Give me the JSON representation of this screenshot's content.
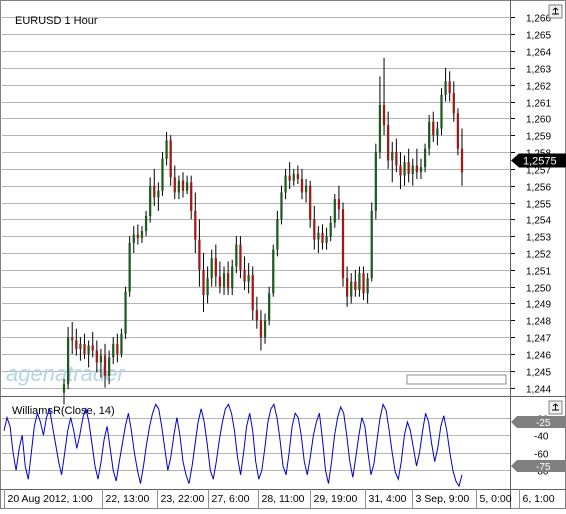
{
  "chart_data": [
    {
      "type": "candlestick",
      "title": "EURUSD 1 Hour",
      "ylim": [
        1.2435,
        1.2668
      ],
      "y_ticks": [
        "1,244",
        "1,245",
        "1,246",
        "1,247",
        "1,248",
        "1,249",
        "1,250",
        "1,251",
        "1,252",
        "1,253",
        "1,254",
        "1,255",
        "1,256",
        "1,257",
        "1,258",
        "1,259",
        "1,260",
        "1,261",
        "1,262",
        "1,263",
        "1,264",
        "1,265",
        "1,266"
      ],
      "last_price_label": "1,2575",
      "last_price": 1.2575,
      "x_ticks": [
        "20 Aug 2012, 1:00",
        "22, 13:00",
        "23, 22:00",
        "27, 6:00",
        "28, 11:00",
        "29, 19:00",
        "31, 4:00",
        "3 Sep, 9:00",
        "5, 0:00",
        "6, 1:00"
      ],
      "grid": true,
      "watermark": "agenatrader",
      "colors": {
        "up": "#1f5a1f",
        "down": "#a01818",
        "wick": "#000000",
        "price_marker": "#000000"
      },
      "candles": [
        {
          "o": 1.2437,
          "h": 1.2445,
          "l": 1.243,
          "c": 1.2442
        },
        {
          "o": 1.2442,
          "h": 1.2476,
          "l": 1.2439,
          "c": 1.247
        },
        {
          "o": 1.247,
          "h": 1.2479,
          "l": 1.246,
          "c": 1.2468
        },
        {
          "o": 1.2468,
          "h": 1.2475,
          "l": 1.2459,
          "c": 1.2463
        },
        {
          "o": 1.2463,
          "h": 1.247,
          "l": 1.2456,
          "c": 1.2466
        },
        {
          "o": 1.2466,
          "h": 1.2472,
          "l": 1.2457,
          "c": 1.246
        },
        {
          "o": 1.246,
          "h": 1.2468,
          "l": 1.2452,
          "c": 1.2465
        },
        {
          "o": 1.2465,
          "h": 1.2473,
          "l": 1.2458,
          "c": 1.2462
        },
        {
          "o": 1.2462,
          "h": 1.2468,
          "l": 1.2449,
          "c": 1.2455
        },
        {
          "o": 1.2455,
          "h": 1.2463,
          "l": 1.2446,
          "c": 1.2459
        },
        {
          "o": 1.2459,
          "h": 1.2466,
          "l": 1.244,
          "c": 1.2447
        },
        {
          "o": 1.2447,
          "h": 1.2462,
          "l": 1.2442,
          "c": 1.2458
        },
        {
          "o": 1.2458,
          "h": 1.247,
          "l": 1.2454,
          "c": 1.2466
        },
        {
          "o": 1.2466,
          "h": 1.2472,
          "l": 1.2455,
          "c": 1.246
        },
        {
          "o": 1.246,
          "h": 1.2475,
          "l": 1.2458,
          "c": 1.2472
        },
        {
          "o": 1.2472,
          "h": 1.25,
          "l": 1.2469,
          "c": 1.2497
        },
        {
          "o": 1.2497,
          "h": 1.253,
          "l": 1.2494,
          "c": 1.2526
        },
        {
          "o": 1.2526,
          "h": 1.2536,
          "l": 1.252,
          "c": 1.2531
        },
        {
          "o": 1.2531,
          "h": 1.2537,
          "l": 1.2525,
          "c": 1.2529
        },
        {
          "o": 1.2529,
          "h": 1.2536,
          "l": 1.2526,
          "c": 1.2533
        },
        {
          "o": 1.2533,
          "h": 1.2545,
          "l": 1.253,
          "c": 1.2542
        },
        {
          "o": 1.2542,
          "h": 1.2565,
          "l": 1.2538,
          "c": 1.256
        },
        {
          "o": 1.256,
          "h": 1.257,
          "l": 1.2548,
          "c": 1.2553
        },
        {
          "o": 1.2553,
          "h": 1.2562,
          "l": 1.2545,
          "c": 1.2557
        },
        {
          "o": 1.2557,
          "h": 1.258,
          "l": 1.2554,
          "c": 1.2576
        },
        {
          "o": 1.2576,
          "h": 1.2592,
          "l": 1.2572,
          "c": 1.2587
        },
        {
          "o": 1.2587,
          "h": 1.259,
          "l": 1.256,
          "c": 1.2565
        },
        {
          "o": 1.2565,
          "h": 1.2572,
          "l": 1.2552,
          "c": 1.2556
        },
        {
          "o": 1.2556,
          "h": 1.2566,
          "l": 1.2552,
          "c": 1.2563
        },
        {
          "o": 1.2563,
          "h": 1.2568,
          "l": 1.2553,
          "c": 1.2557
        },
        {
          "o": 1.2557,
          "h": 1.2566,
          "l": 1.2555,
          "c": 1.2562
        },
        {
          "o": 1.2562,
          "h": 1.2566,
          "l": 1.254,
          "c": 1.2545
        },
        {
          "o": 1.2545,
          "h": 1.2556,
          "l": 1.252,
          "c": 1.2528
        },
        {
          "o": 1.2528,
          "h": 1.254,
          "l": 1.25,
          "c": 1.251
        },
        {
          "o": 1.251,
          "h": 1.252,
          "l": 1.2485,
          "c": 1.2495
        },
        {
          "o": 1.2495,
          "h": 1.2512,
          "l": 1.249,
          "c": 1.2505
        },
        {
          "o": 1.2505,
          "h": 1.2522,
          "l": 1.25,
          "c": 1.2517
        },
        {
          "o": 1.2517,
          "h": 1.2525,
          "l": 1.25,
          "c": 1.2506
        },
        {
          "o": 1.2506,
          "h": 1.2515,
          "l": 1.2496,
          "c": 1.25
        },
        {
          "o": 1.25,
          "h": 1.2512,
          "l": 1.2495,
          "c": 1.2508
        },
        {
          "o": 1.2508,
          "h": 1.2515,
          "l": 1.2495,
          "c": 1.2499
        },
        {
          "o": 1.2499,
          "h": 1.2516,
          "l": 1.2495,
          "c": 1.2512
        },
        {
          "o": 1.2512,
          "h": 1.253,
          "l": 1.2508,
          "c": 1.2525
        },
        {
          "o": 1.2525,
          "h": 1.253,
          "l": 1.2505,
          "c": 1.251
        },
        {
          "o": 1.251,
          "h": 1.2518,
          "l": 1.2498,
          "c": 1.2503
        },
        {
          "o": 1.2503,
          "h": 1.2514,
          "l": 1.2496,
          "c": 1.2507
        },
        {
          "o": 1.2507,
          "h": 1.2512,
          "l": 1.248,
          "c": 1.2486
        },
        {
          "o": 1.2486,
          "h": 1.2494,
          "l": 1.2475,
          "c": 1.248
        },
        {
          "o": 1.248,
          "h": 1.2486,
          "l": 1.2462,
          "c": 1.247
        },
        {
          "o": 1.247,
          "h": 1.2484,
          "l": 1.2466,
          "c": 1.248
        },
        {
          "o": 1.248,
          "h": 1.25,
          "l": 1.2477,
          "c": 1.2496
        },
        {
          "o": 1.2496,
          "h": 1.2525,
          "l": 1.2494,
          "c": 1.2522
        },
        {
          "o": 1.2522,
          "h": 1.2545,
          "l": 1.2518,
          "c": 1.254
        },
        {
          "o": 1.254,
          "h": 1.256,
          "l": 1.2537,
          "c": 1.2556
        },
        {
          "o": 1.2556,
          "h": 1.257,
          "l": 1.2552,
          "c": 1.2566
        },
        {
          "o": 1.2566,
          "h": 1.2574,
          "l": 1.2558,
          "c": 1.2563
        },
        {
          "o": 1.2563,
          "h": 1.257,
          "l": 1.256,
          "c": 1.2567
        },
        {
          "o": 1.2567,
          "h": 1.2572,
          "l": 1.2561,
          "c": 1.2564
        },
        {
          "o": 1.2564,
          "h": 1.257,
          "l": 1.2552,
          "c": 1.2556
        },
        {
          "o": 1.2556,
          "h": 1.2564,
          "l": 1.255,
          "c": 1.256
        },
        {
          "o": 1.256,
          "h": 1.2563,
          "l": 1.2535,
          "c": 1.254
        },
        {
          "o": 1.254,
          "h": 1.2548,
          "l": 1.2522,
          "c": 1.2528
        },
        {
          "o": 1.2528,
          "h": 1.2536,
          "l": 1.252,
          "c": 1.2532
        },
        {
          "o": 1.2532,
          "h": 1.2537,
          "l": 1.2522,
          "c": 1.2526
        },
        {
          "o": 1.2526,
          "h": 1.2535,
          "l": 1.2522,
          "c": 1.253
        },
        {
          "o": 1.253,
          "h": 1.2542,
          "l": 1.2527,
          "c": 1.2538
        },
        {
          "o": 1.2538,
          "h": 1.2555,
          "l": 1.2535,
          "c": 1.2552
        },
        {
          "o": 1.2552,
          "h": 1.256,
          "l": 1.254,
          "c": 1.2546
        },
        {
          "o": 1.2546,
          "h": 1.255,
          "l": 1.25,
          "c": 1.2505
        },
        {
          "o": 1.2505,
          "h": 1.2512,
          "l": 1.2488,
          "c": 1.2494
        },
        {
          "o": 1.2494,
          "h": 1.2508,
          "l": 1.249,
          "c": 1.2503
        },
        {
          "o": 1.2503,
          "h": 1.251,
          "l": 1.2494,
          "c": 1.2498
        },
        {
          "o": 1.2498,
          "h": 1.2512,
          "l": 1.2494,
          "c": 1.2508
        },
        {
          "o": 1.2508,
          "h": 1.2512,
          "l": 1.2492,
          "c": 1.2496
        },
        {
          "o": 1.2496,
          "h": 1.2508,
          "l": 1.249,
          "c": 1.2505
        },
        {
          "o": 1.2505,
          "h": 1.255,
          "l": 1.2503,
          "c": 1.2545
        },
        {
          "o": 1.2545,
          "h": 1.2585,
          "l": 1.254,
          "c": 1.258
        },
        {
          "o": 1.258,
          "h": 1.2625,
          "l": 1.2576,
          "c": 1.2608
        },
        {
          "o": 1.2608,
          "h": 1.2636,
          "l": 1.259,
          "c": 1.2596
        },
        {
          "o": 1.2596,
          "h": 1.2604,
          "l": 1.257,
          "c": 1.2575
        },
        {
          "o": 1.2575,
          "h": 1.2586,
          "l": 1.2562,
          "c": 1.258
        },
        {
          "o": 1.258,
          "h": 1.2588,
          "l": 1.2568,
          "c": 1.2572
        },
        {
          "o": 1.2572,
          "h": 1.258,
          "l": 1.2558,
          "c": 1.2566
        },
        {
          "o": 1.2566,
          "h": 1.2578,
          "l": 1.256,
          "c": 1.2574
        },
        {
          "o": 1.2574,
          "h": 1.2582,
          "l": 1.2562,
          "c": 1.2567
        },
        {
          "o": 1.2567,
          "h": 1.2576,
          "l": 1.256,
          "c": 1.2572
        },
        {
          "o": 1.2572,
          "h": 1.2582,
          "l": 1.2564,
          "c": 1.2568
        },
        {
          "o": 1.2568,
          "h": 1.2576,
          "l": 1.2564,
          "c": 1.2571
        },
        {
          "o": 1.2571,
          "h": 1.2585,
          "l": 1.2568,
          "c": 1.2582
        },
        {
          "o": 1.2582,
          "h": 1.2602,
          "l": 1.2578,
          "c": 1.2598
        },
        {
          "o": 1.2598,
          "h": 1.2604,
          "l": 1.2586,
          "c": 1.259
        },
        {
          "o": 1.259,
          "h": 1.2598,
          "l": 1.2584,
          "c": 1.2594
        },
        {
          "o": 1.2594,
          "h": 1.2618,
          "l": 1.259,
          "c": 1.2614
        },
        {
          "o": 1.2614,
          "h": 1.263,
          "l": 1.261,
          "c": 1.2622
        },
        {
          "o": 1.2622,
          "h": 1.2628,
          "l": 1.261,
          "c": 1.2615
        },
        {
          "o": 1.2615,
          "h": 1.2622,
          "l": 1.2598,
          "c": 1.2603
        },
        {
          "o": 1.2603,
          "h": 1.2606,
          "l": 1.2578,
          "c": 1.2582
        },
        {
          "o": 1.2582,
          "h": 1.2594,
          "l": 1.256,
          "c": 1.2568
        }
      ]
    },
    {
      "type": "line",
      "title": "WilliamsR(Close, 14)",
      "ylim": [
        -100,
        0
      ],
      "y_ticks": [
        "-20",
        "-40",
        "-60",
        "-80"
      ],
      "level_markers": [
        "-25",
        "-75"
      ],
      "series": [
        {
          "name": "WilliamsR(Close, 14)",
          "color": "#0000cc",
          "values": [
            -35,
            -20,
            -30,
            -60,
            -80,
            -55,
            -40,
            -75,
            -90,
            -60,
            -30,
            -15,
            -25,
            -40,
            -20,
            -10,
            -30,
            -50,
            -70,
            -85,
            -60,
            -35,
            -20,
            -35,
            -55,
            -40,
            -20,
            -10,
            -25,
            -50,
            -75,
            -90,
            -70,
            -45,
            -30,
            -55,
            -80,
            -92,
            -70,
            -50,
            -30,
            -15,
            -35,
            -60,
            -80,
            -95,
            -75,
            -50,
            -30,
            -15,
            -5,
            -10,
            -30,
            -55,
            -80,
            -65,
            -40,
            -20,
            -40,
            -70,
            -85,
            -95,
            -75,
            -50,
            -25,
            -10,
            -25,
            -50,
            -80,
            -90,
            -70,
            -45,
            -25,
            -10,
            -5,
            -15,
            -35,
            -65,
            -85,
            -60,
            -30,
            -15,
            -35,
            -70,
            -90,
            -80,
            -55,
            -25,
            -10,
            -5,
            -20,
            -45,
            -75,
            -85,
            -60,
            -30,
            -15,
            -20,
            -40,
            -70,
            -85,
            -65,
            -40,
            -25,
            -15,
            -45,
            -80,
            -95,
            -70,
            -40,
            -20,
            -8,
            -15,
            -40,
            -70,
            -88,
            -65,
            -40,
            -20,
            -30,
            -60,
            -85,
            -72,
            -45,
            -20,
            -5,
            -12,
            -35,
            -60,
            -82,
            -90,
            -70,
            -40,
            -25,
            -35,
            -55,
            -75,
            -60,
            -35,
            -15,
            -25,
            -50,
            -70,
            -55,
            -30,
            -18,
            -35,
            -60,
            -80,
            -92,
            -98,
            -85
          ]
        }
      ]
    }
  ]
}
